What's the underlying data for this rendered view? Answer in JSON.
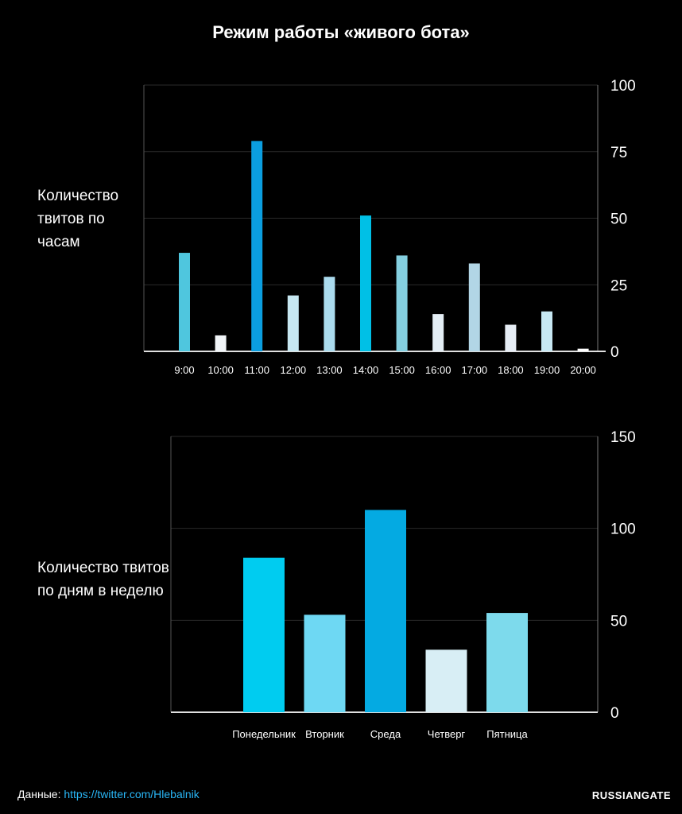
{
  "title": "Режим работы «живого бота»",
  "footer": {
    "source_label": "Данные:",
    "source_link": "https://twitter.com/Hlebalnik",
    "brand": "RUSSIANGATE"
  },
  "chart_data": [
    {
      "type": "bar",
      "label": "Количество твитов по часам",
      "categories": [
        "9:00",
        "10:00",
        "11:00",
        "12:00",
        "13:00",
        "14:00",
        "15:00",
        "16:00",
        "17:00",
        "18:00",
        "19:00",
        "20:00"
      ],
      "values": [
        37,
        6,
        79,
        21,
        28,
        51,
        36,
        14,
        33,
        10,
        15,
        1
      ],
      "colors": [
        "#4fc6de",
        "#f1f5f8",
        "#0b9ee0",
        "#c6e7f1",
        "#abdbee",
        "#00c0e6",
        "#84cfe0",
        "#e4eef5",
        "#b2d6e6",
        "#e6edf5",
        "#c7e8f3",
        "#ffffff"
      ],
      "ylim": [
        0,
        100
      ],
      "yticks": [
        0,
        25,
        50,
        75,
        100
      ],
      "grid": true,
      "axis_side": "right"
    },
    {
      "type": "bar",
      "label": "Количество твитов по дням в неделю",
      "categories": [
        "Понедельник",
        "Вторник",
        "Среда",
        "Четверг",
        "Пятница"
      ],
      "values": [
        84,
        53,
        110,
        34,
        54
      ],
      "colors": [
        "#00ccf0",
        "#6ed8f3",
        "#04aae2",
        "#d8eef5",
        "#7ddaec"
      ],
      "ylim": [
        0,
        150
      ],
      "yticks": [
        0,
        50,
        100,
        150
      ],
      "grid": true,
      "axis_side": "right"
    }
  ]
}
